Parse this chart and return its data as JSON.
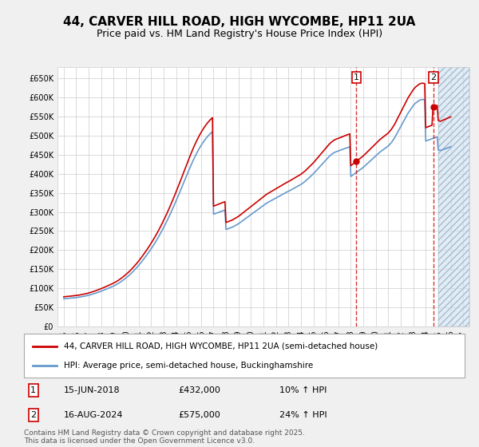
{
  "title": "44, CARVER HILL ROAD, HIGH WYCOMBE, HP11 2UA",
  "subtitle": "Price paid vs. HM Land Registry's House Price Index (HPI)",
  "legend_line1": "44, CARVER HILL ROAD, HIGH WYCOMBE, HP11 2UA (semi-detached house)",
  "legend_line2": "HPI: Average price, semi-detached house, Buckinghamshire",
  "footnote": "Contains HM Land Registry data © Crown copyright and database right 2025.\nThis data is licensed under the Open Government Licence v3.0.",
  "sale1_label": "1",
  "sale1_date": "15-JUN-2018",
  "sale1_price": "£432,000",
  "sale1_hpi": "10% ↑ HPI",
  "sale2_label": "2",
  "sale2_date": "16-AUG-2024",
  "sale2_price": "£575,000",
  "sale2_hpi": "24% ↑ HPI",
  "sale1_x": 2018.45,
  "sale2_x": 2024.62,
  "sale1_y": 432000,
  "sale2_y": 575000,
  "ylim": [
    0,
    680000
  ],
  "xlim": [
    1994.5,
    2027.5
  ],
  "yticks": [
    0,
    50000,
    100000,
    150000,
    200000,
    250000,
    300000,
    350000,
    400000,
    450000,
    500000,
    550000,
    600000,
    650000
  ],
  "ytick_labels": [
    "£0",
    "£50K",
    "£100K",
    "£150K",
    "£200K",
    "£250K",
    "£300K",
    "£350K",
    "£400K",
    "£450K",
    "£500K",
    "£550K",
    "£600K",
    "£650K"
  ],
  "xticks": [
    1995,
    1996,
    1997,
    1998,
    1999,
    2000,
    2001,
    2002,
    2003,
    2004,
    2005,
    2006,
    2007,
    2008,
    2009,
    2010,
    2011,
    2012,
    2013,
    2014,
    2015,
    2016,
    2017,
    2018,
    2019,
    2020,
    2021,
    2022,
    2023,
    2024,
    2025,
    2026,
    2027
  ],
  "line_color_property": "#cc0000",
  "line_color_hpi": "#6699cc",
  "hatch_color": "#cce0f0",
  "bg_color": "#f0f0f0",
  "plot_bg": "#ffffff",
  "grid_color": "#cccccc",
  "hpi_values": [
    72000,
    72500,
    72800,
    73000,
    73200,
    73500,
    73800,
    74000,
    74300,
    74600,
    74900,
    75200,
    75500,
    75800,
    76200,
    76500,
    77000,
    77500,
    78000,
    78500,
    79000,
    79600,
    80200,
    80800,
    81500,
    82200,
    83000,
    83800,
    84600,
    85500,
    86400,
    87300,
    88200,
    89200,
    90200,
    91200,
    92200,
    93200,
    94300,
    95400,
    96500,
    97600,
    98700,
    99800,
    101000,
    102200,
    103400,
    104600,
    105900,
    107200,
    108600,
    110100,
    111700,
    113400,
    115200,
    117000,
    118900,
    120900,
    122900,
    125000,
    127200,
    129400,
    131700,
    134100,
    136600,
    139200,
    141900,
    144700,
    147500,
    150400,
    153400,
    156500,
    159700,
    162900,
    166200,
    169600,
    173100,
    176600,
    180200,
    183900,
    187600,
    191400,
    195200,
    199100,
    203100,
    207200,
    211400,
    215700,
    220100,
    224600,
    229200,
    233900,
    238700,
    243600,
    248600,
    253700,
    258900,
    264200,
    269600,
    275100,
    280700,
    286400,
    292200,
    298100,
    304100,
    310200,
    316400,
    322600,
    328900,
    335300,
    341700,
    348200,
    354700,
    361300,
    367900,
    374500,
    381100,
    387700,
    394300,
    400900,
    407400,
    413900,
    420300,
    426500,
    432600,
    438500,
    444200,
    449700,
    455000,
    460100,
    465000,
    469700,
    474200,
    478500,
    482600,
    486500,
    490200,
    493700,
    497000,
    500100,
    503000,
    505700,
    508200,
    510500,
    294000,
    295000,
    296000,
    297000,
    298000,
    299000,
    300000,
    301000,
    302000,
    303000,
    304000,
    305000,
    254000,
    255000,
    256000,
    257000,
    258000,
    259000,
    260000,
    261500,
    263000,
    264500,
    266000,
    267500,
    269000,
    271000,
    273000,
    275000,
    277000,
    279000,
    281000,
    283000,
    285000,
    287000,
    289000,
    291000,
    293000,
    295000,
    297000,
    299000,
    301000,
    303000,
    305000,
    307000,
    309000,
    311000,
    313000,
    315000,
    317000,
    319000,
    321000,
    323000,
    324500,
    326000,
    327500,
    329000,
    330500,
    332000,
    333500,
    335000,
    336500,
    338000,
    339500,
    341000,
    342500,
    344000,
    345500,
    347000,
    348500,
    350000,
    351500,
    353000,
    354000,
    355500,
    357000,
    358500,
    360000,
    361500,
    363000,
    364500,
    366000,
    367500,
    369000,
    370500,
    372000,
    374000,
    376000,
    378000,
    380000,
    382500,
    385000,
    387500,
    390000,
    392500,
    395000,
    397500,
    400000,
    403000,
    406000,
    409000,
    412000,
    415000,
    418000,
    421000,
    424000,
    427000,
    430000,
    433000,
    436000,
    439000,
    442000,
    445000,
    447500,
    450000,
    452000,
    454000,
    455500,
    457000,
    458000,
    459000,
    460000,
    461000,
    462000,
    463000,
    464000,
    465000,
    466000,
    467000,
    468000,
    469000,
    470000,
    471000,
    393000,
    395000,
    397000,
    399000,
    401000,
    403000,
    405000,
    407000,
    409000,
    411000,
    413000,
    415000,
    417000,
    419500,
    422000,
    424500,
    427000,
    429500,
    432000,
    434500,
    437000,
    439500,
    442000,
    444500,
    447000,
    449500,
    452000,
    454500,
    457000,
    459000,
    461000,
    463000,
    465000,
    467000,
    469000,
    471000,
    473000,
    476000,
    479000,
    482000,
    486000,
    490000,
    494000,
    499000,
    504000,
    509000,
    514000,
    519000,
    524000,
    529000,
    534000,
    539000,
    544000,
    549000,
    554000,
    559000,
    563000,
    567000,
    571000,
    575000,
    579000,
    582000,
    585000,
    587000,
    589000,
    591000,
    593000,
    594000,
    594500,
    595000,
    594500,
    594000,
    486000,
    487000,
    488000,
    489000,
    490000,
    491000,
    492000,
    493000,
    494000,
    495000,
    496000,
    497000,
    463000,
    462000,
    461000,
    462000,
    463000,
    464000,
    465000,
    466000,
    467000,
    468000,
    469000,
    470000,
    471000
  ]
}
